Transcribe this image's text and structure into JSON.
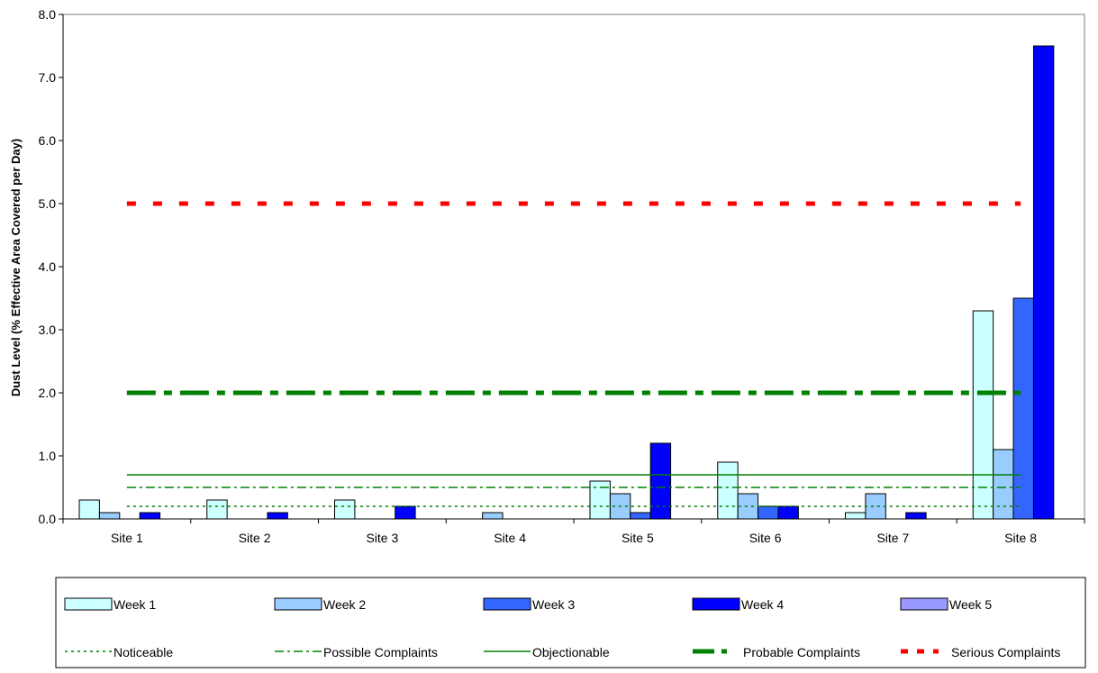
{
  "chart_data": {
    "type": "bar",
    "ylabel": "Dust Level (% Effective Area Covered per Day)",
    "xlabel": "",
    "ylim": [
      0,
      8
    ],
    "y_ticks": [
      "0.0",
      "1.0",
      "2.0",
      "3.0",
      "4.0",
      "5.0",
      "6.0",
      "7.0",
      "8.0"
    ],
    "grid": false,
    "legend_position": "bottom",
    "categories": [
      "Site 1",
      "Site 2",
      "Site 3",
      "Site 4",
      "Site 5",
      "Site 6",
      "Site 7",
      "Site 8"
    ],
    "series": [
      {
        "name": "Week 1",
        "color": "#ccffff",
        "values": [
          0.3,
          0.3,
          0.3,
          0,
          0.6,
          0.9,
          0.1,
          3.3
        ]
      },
      {
        "name": "Week 2",
        "color": "#99ccff",
        "values": [
          0.1,
          0,
          0,
          0.1,
          0.4,
          0.4,
          0.4,
          1.1
        ]
      },
      {
        "name": "Week 3",
        "color": "#3366ff",
        "values": [
          0,
          0,
          0,
          0,
          0.1,
          0.2,
          0,
          3.5
        ]
      },
      {
        "name": "Week 4",
        "color": "#0000ff",
        "values": [
          0.1,
          0.1,
          0.2,
          0,
          1.2,
          0.2,
          0.1,
          7.5
        ]
      },
      {
        "name": "Week 5",
        "color": "#9999ff",
        "values": [
          0,
          0,
          0,
          0,
          0,
          0,
          0,
          0
        ]
      }
    ],
    "reference_lines": [
      {
        "name": "Noticeable",
        "value": 0.2,
        "color": "#008000",
        "style": "dotted"
      },
      {
        "name": "Possible Complaints",
        "value": 0.5,
        "color": "#008000",
        "style": "dash-dot"
      },
      {
        "name": "Objectionable",
        "value": 0.7,
        "color": "#008000",
        "style": "solid"
      },
      {
        "name": "Probable Complaints",
        "value": 2.0,
        "color": "#008000",
        "style": "thick-dash-dot"
      },
      {
        "name": "Serious Complaints",
        "value": 5.0,
        "color": "#ff0000",
        "style": "thick-dotted"
      }
    ]
  }
}
